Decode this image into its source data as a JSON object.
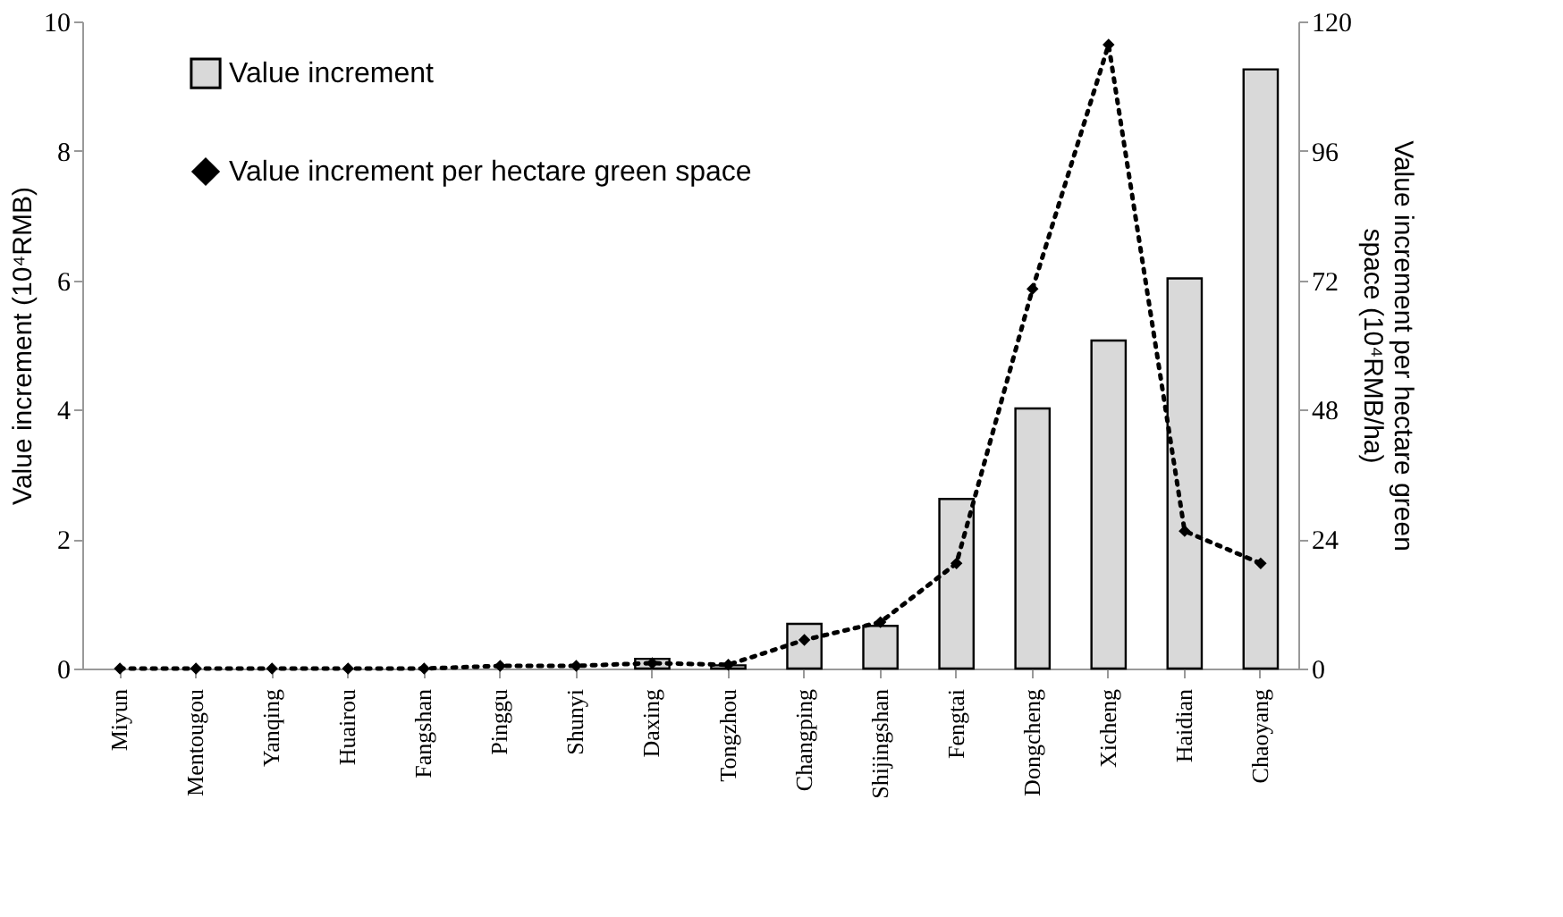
{
  "chart_data": {
    "type": "bar",
    "categories": [
      "Miyun",
      "Mentougou",
      "Yanqing",
      "Huairou",
      "Fangshan",
      "Pinggu",
      "Shunyi",
      "Daxing",
      "Tongzhou",
      "Changping",
      "Shijingshan",
      "Fengtai",
      "Dongcheng",
      "Xicheng",
      "Haidian",
      "Chaoyang"
    ],
    "series": [
      {
        "name": "Value increment",
        "color": "#d9d9d9",
        "values": [
          0,
          0,
          0,
          0,
          0,
          0,
          0,
          0.15,
          0.05,
          0.69,
          0.66,
          2.62,
          4.02,
          5.07,
          6.03,
          9.26
        ]
      },
      {
        "name": "Value increment per hectare green space",
        "type": "line",
        "axis": "y2",
        "color": "#000000",
        "marker": "diamond",
        "line_style": "dotted",
        "values": [
          0,
          0,
          0,
          0,
          0,
          0.5,
          0.5,
          1,
          0.7,
          5.3,
          8.6,
          19.5,
          70.4,
          115.7,
          25.5,
          19.5
        ]
      }
    ],
    "ylabel": "Value increment (10⁴RMB)",
    "y2label": "Value increment per hectare green space (10⁴RMB/ha)",
    "ylim": [
      0,
      10
    ],
    "yticks": [
      0,
      2,
      4,
      6,
      8,
      10
    ],
    "y2lim": [
      0,
      120
    ],
    "y2ticks": [
      0,
      24,
      48,
      72,
      96,
      120
    ],
    "legend": "top left",
    "grid": false
  }
}
